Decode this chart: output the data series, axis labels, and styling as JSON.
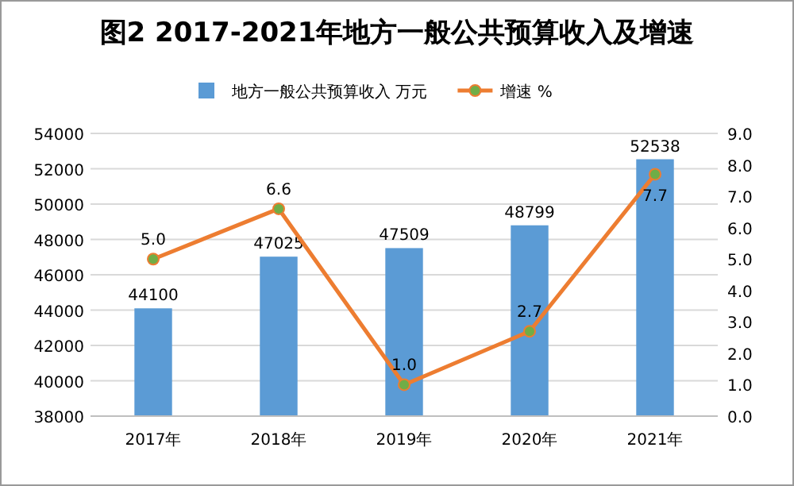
{
  "chart_data": {
    "type": "bar",
    "title": "图2 2017-2021年地方一般公共预算收入及增速",
    "categories": [
      "2017年",
      "2018年",
      "2019年",
      "2020年",
      "2021年"
    ],
    "series": [
      {
        "name": "地方一般公共预算收入 万元",
        "color": "#5b9bd5",
        "values": [
          44100,
          47025,
          47509,
          48799,
          52538
        ]
      },
      {
        "name": "增速 %",
        "type": "line",
        "axis": "y2",
        "color": "#ed7d31",
        "values": [
          5.0,
          6.6,
          1.0,
          2.7,
          7.7
        ],
        "value_labels": [
          "5.0",
          "6.6",
          "1.0",
          "2.7",
          "7.7"
        ]
      }
    ],
    "ylim": [
      38000,
      54000
    ],
    "yticks": [
      38000,
      40000,
      42000,
      44000,
      46000,
      48000,
      50000,
      52000,
      54000
    ],
    "y2lim": [
      0,
      9
    ],
    "y2ticks": [
      {
        "value": 0,
        "label": "0.0"
      },
      {
        "value": 1,
        "label": "1.0"
      },
      {
        "value": 2,
        "label": "2.0"
      },
      {
        "value": 3,
        "label": "3.0"
      },
      {
        "value": 4,
        "label": "4.0"
      },
      {
        "value": 5,
        "label": "5.0"
      },
      {
        "value": 6,
        "label": "6.0"
      },
      {
        "value": 7,
        "label": "7.0"
      },
      {
        "value": 8,
        "label": "8.0"
      },
      {
        "value": 9,
        "label": "9.0"
      }
    ],
    "grid": "y",
    "legend": "top",
    "marker": "circle",
    "line_style": "solid",
    "data_labels": true
  }
}
